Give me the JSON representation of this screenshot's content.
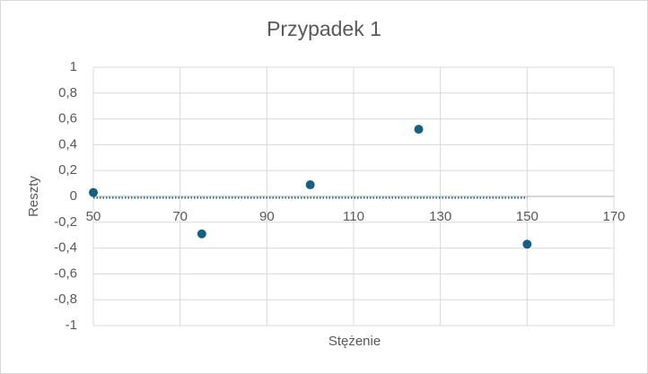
{
  "chart_data": {
    "type": "scatter",
    "title": "Przypadek 1",
    "x_label": "Stężenie",
    "y_label": "Reszty",
    "series": [
      {
        "x": [
          50,
          75,
          100,
          125,
          150
        ],
        "values": [
          0.03,
          -0.29,
          0.09,
          0.52,
          -0.37
        ],
        "color": "#156082"
      }
    ],
    "trendline": {
      "x": [
        50,
        150
      ],
      "values": [
        -0.01,
        -0.01
      ],
      "color": "#156082"
    },
    "xlim": [
      50,
      170
    ],
    "xticks": [
      50,
      70,
      90,
      110,
      130,
      150,
      170
    ],
    "ylim": [
      -1,
      1
    ],
    "yticks": [
      -1,
      {
        "value": -0.8,
        "label": "-0,8"
      },
      {
        "value": -0.6,
        "label": "-0,6"
      },
      {
        "value": -0.4,
        "label": "-0,4"
      },
      {
        "value": -0.2,
        "label": "-0,2"
      },
      0,
      {
        "value": 0.2,
        "label": "0,2"
      },
      {
        "value": 0.4,
        "label": "0,4"
      },
      {
        "value": 0.6,
        "label": "0,6"
      },
      {
        "value": 0.8,
        "label": "0,8"
      },
      1
    ],
    "grid": true
  }
}
